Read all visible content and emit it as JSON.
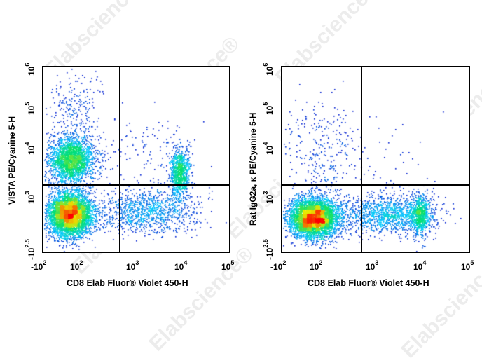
{
  "watermark": "Elabscience®",
  "chart_data": [
    {
      "type": "scatter",
      "subtype": "flow-cytometry-density-plot",
      "title": "",
      "xlabel": "CD8 Elab Fluor® Violet 450-H",
      "ylabel": "VISTA PE/Cyanine 5-H",
      "x_ticks": [
        "-10^2",
        "10^2",
        "10^3",
        "10^4",
        "10^5"
      ],
      "y_ticks": [
        "-10^2.5",
        "10^3",
        "10^4",
        "10^5",
        "10^6"
      ],
      "x_scale": "biexponential",
      "y_scale": "biexponential",
      "xlim": [
        "-10^2",
        "10^5"
      ],
      "ylim": [
        "-10^2.5",
        "10^6"
      ],
      "gate": {
        "x": 500,
        "y": 1600
      },
      "populations": [
        {
          "name": "CD8- VISTA+",
          "x_center": 80,
          "y_center": 5000,
          "density": "high"
        },
        {
          "name": "CD8- VISTA-",
          "x_center": 80,
          "y_center": 600,
          "density": "highest"
        },
        {
          "name": "CD8+ VISTA+",
          "x_center": 8000,
          "y_center": 2800,
          "density": "medium"
        },
        {
          "name": "CD8+ VISTA- (low)",
          "x_center": 8000,
          "y_center": 800,
          "density": "low"
        }
      ],
      "color_scale": [
        "#0000c8",
        "#00c8ff",
        "#00e070",
        "#e8e800",
        "#ff0000"
      ]
    },
    {
      "type": "scatter",
      "subtype": "flow-cytometry-density-plot",
      "title": "",
      "xlabel": "CD8 Elab Fluor® Violet 450-H",
      "ylabel": "Rat IgG2a, κ PE/Cyanine 5-H",
      "x_ticks": [
        "-10^2",
        "10^2",
        "10^3",
        "10^4",
        "10^5"
      ],
      "y_ticks": [
        "-10^2.5",
        "10^3",
        "10^4",
        "10^5",
        "10^6"
      ],
      "x_scale": "biexponential",
      "y_scale": "biexponential",
      "xlim": [
        "-10^2",
        "10^5"
      ],
      "ylim": [
        "-10^2.5",
        "10^6"
      ],
      "gate": {
        "x": 500,
        "y": 1600
      },
      "populations": [
        {
          "name": "CD8- isotype-",
          "x_center": 80,
          "y_center": 600,
          "density": "highest"
        },
        {
          "name": "CD8+ isotype-",
          "x_center": 8000,
          "y_center": 600,
          "density": "medium"
        }
      ],
      "color_scale": [
        "#0000c8",
        "#00c8ff",
        "#00e070",
        "#e8e800",
        "#ff0000"
      ]
    }
  ],
  "panels": [
    {
      "ylabel": "VISTA PE/Cyanine 5-H",
      "xlabel": "CD8 Elab Fluor® Violet 450-H",
      "xticks": [
        {
          "base": "-10",
          "exp": "2"
        },
        {
          "base": "10",
          "exp": "2"
        },
        {
          "base": "10",
          "exp": "3"
        },
        {
          "base": "10",
          "exp": "4"
        },
        {
          "base": "10",
          "exp": "5"
        }
      ],
      "yticks": [
        {
          "base": "-10",
          "exp": "2.5"
        },
        {
          "base": "10",
          "exp": "3"
        },
        {
          "base": "10",
          "exp": "4"
        },
        {
          "base": "10",
          "exp": "5"
        },
        {
          "base": "10",
          "exp": "6"
        }
      ]
    },
    {
      "ylabel": "Rat IgG2a, κ PE/Cyanine 5-H",
      "xlabel": "CD8 Elab Fluor® Violet 450-H",
      "xticks": [
        {
          "base": "-10",
          "exp": "2"
        },
        {
          "base": "10",
          "exp": "2"
        },
        {
          "base": "10",
          "exp": "3"
        },
        {
          "base": "10",
          "exp": "4"
        },
        {
          "base": "10",
          "exp": "5"
        }
      ],
      "yticks": [
        {
          "base": "-10",
          "exp": "2.5"
        },
        {
          "base": "10",
          "exp": "3"
        },
        {
          "base": "10",
          "exp": "4"
        },
        {
          "base": "10",
          "exp": "5"
        },
        {
          "base": "10",
          "exp": "6"
        }
      ]
    }
  ]
}
